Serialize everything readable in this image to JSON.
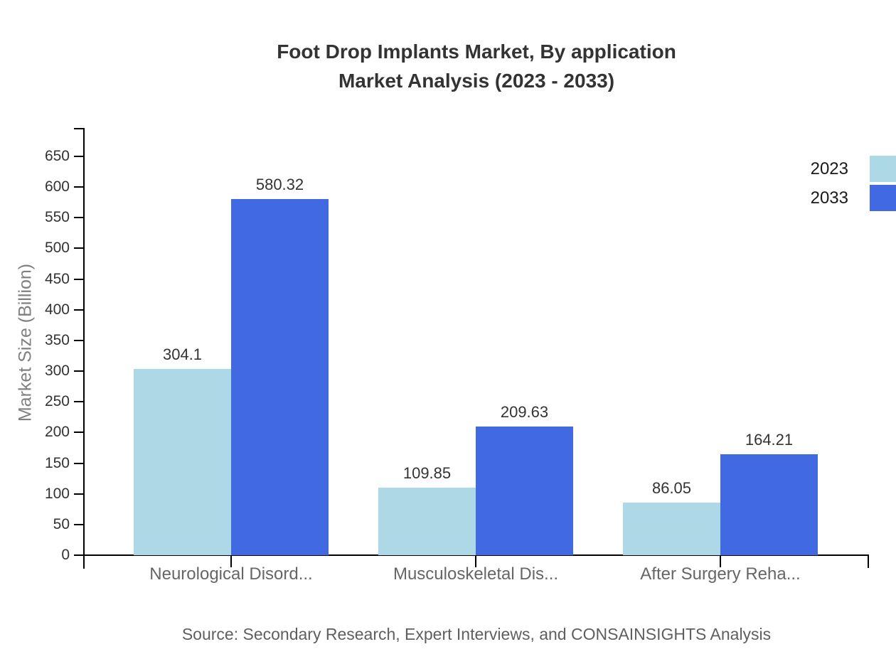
{
  "title": {
    "line1": "Foot Drop Implants Market, By application",
    "line2": "Market Analysis (2023 - 2033)"
  },
  "y_axis": {
    "label": "Market Size (Billion)",
    "ticks": [
      0,
      50,
      100,
      150,
      200,
      250,
      300,
      350,
      400,
      450,
      500,
      550,
      600,
      650
    ]
  },
  "x_axis": {
    "categories": [
      "Neurological Disord...",
      "Musculoskeletal Dis...",
      "After Surgery Reha..."
    ]
  },
  "legend": {
    "position": "top-right",
    "items": [
      {
        "label": "2023",
        "color": "#add8e6"
      },
      {
        "label": "2033",
        "color": "#4169e1"
      }
    ]
  },
  "source": "Source: Secondary Research, Expert Interviews, and CONSAINSIGHTS Analysis",
  "colors": {
    "series_2023": "#add8e6",
    "series_2033": "#4169e1",
    "axis": "#000000",
    "title_text": "#333333",
    "muted_text": "#666666"
  },
  "chart_data": {
    "type": "bar",
    "categories": [
      "Neurological Disord...",
      "Musculoskeletal Dis...",
      "After Surgery Reha..."
    ],
    "series": [
      {
        "name": "2023",
        "color": "#add8e6",
        "values": [
          304.1,
          109.85,
          86.05
        ]
      },
      {
        "name": "2033",
        "color": "#4169e1",
        "values": [
          580.32,
          209.63,
          164.21
        ]
      }
    ],
    "title": "Foot Drop Implants Market, By application Market Analysis (2023 - 2033)",
    "xlabel": "",
    "ylabel": "Market Size (Billion)",
    "ylim": [
      0,
      695
    ],
    "y_tick_step": 50,
    "grid": false,
    "legend_position": "top-right",
    "value_labels": true
  }
}
